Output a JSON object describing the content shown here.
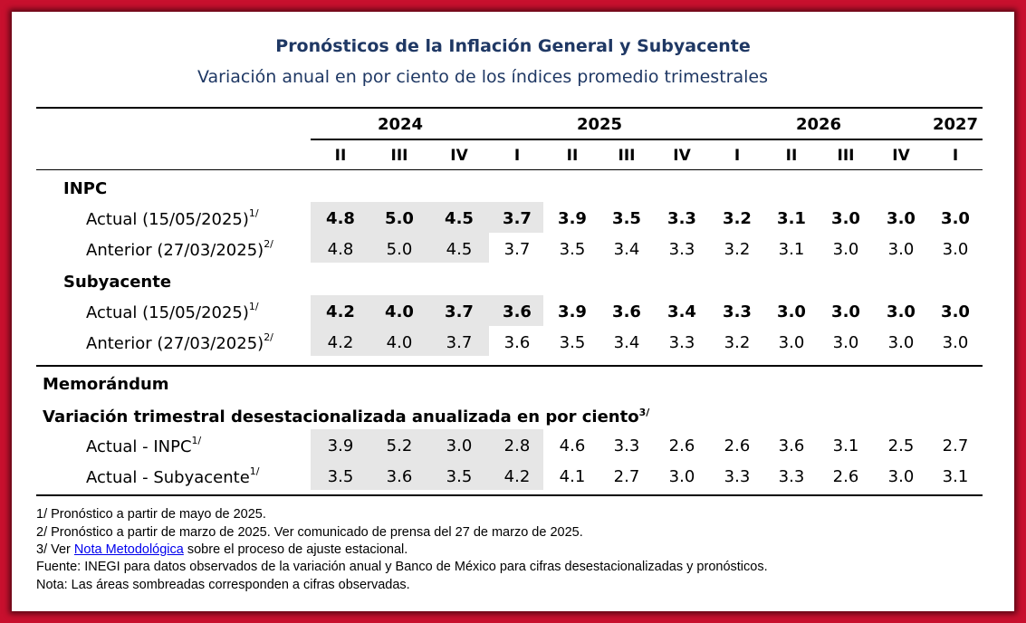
{
  "title": "Pronósticos de la Inflación General y Subyacente",
  "subtitle": "Variación anual en por ciento de los índices promedio trimestrales",
  "years": [
    "2024",
    "2025",
    "2026",
    "2027"
  ],
  "quarters": [
    "II",
    "III",
    "IV",
    "I",
    "II",
    "III",
    "IV",
    "I",
    "II",
    "III",
    "IV",
    "I"
  ],
  "inpc": {
    "label": "INPC",
    "actual": {
      "label": "Actual (15/05/2025)",
      "sup": "1/",
      "values": [
        "4.8",
        "5.0",
        "4.5",
        "3.7",
        "3.9",
        "3.5",
        "3.3",
        "3.2",
        "3.1",
        "3.0",
        "3.0",
        "3.0"
      ]
    },
    "anterior": {
      "label": "Anterior (27/03/2025)",
      "sup": "2/",
      "values": [
        "4.8",
        "5.0",
        "4.5",
        "3.7",
        "3.5",
        "3.4",
        "3.3",
        "3.2",
        "3.1",
        "3.0",
        "3.0",
        "3.0"
      ]
    }
  },
  "subyacente": {
    "label": "Subyacente",
    "actual": {
      "label": "Actual (15/05/2025)",
      "sup": "1/",
      "values": [
        "4.2",
        "4.0",
        "3.7",
        "3.6",
        "3.9",
        "3.6",
        "3.4",
        "3.3",
        "3.0",
        "3.0",
        "3.0",
        "3.0"
      ]
    },
    "anterior": {
      "label": "Anterior (27/03/2025)",
      "sup": "2/",
      "values": [
        "4.2",
        "4.0",
        "3.7",
        "3.6",
        "3.5",
        "3.4",
        "3.3",
        "3.2",
        "3.0",
        "3.0",
        "3.0",
        "3.0"
      ]
    }
  },
  "memo": {
    "label": "Memorándum",
    "sublabel": "Variación trimestral desestacionalizada anualizada en por ciento",
    "sublabel_sup": "3/",
    "inpc": {
      "label": "Actual - INPC",
      "sup": "1/",
      "values": [
        "3.9",
        "5.2",
        "3.0",
        "2.8",
        "4.6",
        "3.3",
        "2.6",
        "2.6",
        "3.6",
        "3.1",
        "2.5",
        "2.7"
      ]
    },
    "subyacente": {
      "label": "Actual - Subyacente",
      "sup": "1/",
      "values": [
        "3.5",
        "3.6",
        "3.5",
        "4.2",
        "4.1",
        "2.7",
        "3.0",
        "3.3",
        "3.3",
        "2.6",
        "3.0",
        "3.1"
      ]
    }
  },
  "notes": {
    "n1": "1/ Pronóstico a partir de mayo de 2025.",
    "n2": "2/ Pronóstico a partir de marzo de 2025. Ver comunicado de prensa del 27 de marzo de 2025.",
    "n3_pre": "3/ Ver ",
    "n3_link": "Nota Metodológica",
    "n3_post": " sobre el proceso de ajuste estacional.",
    "fuente": "Fuente: INEGI para datos observados de la variación anual y Banco de México para cifras desestacionalizadas y pronósticos.",
    "nota": "Nota: Las áreas sombreadas corresponden a cifras observadas."
  }
}
